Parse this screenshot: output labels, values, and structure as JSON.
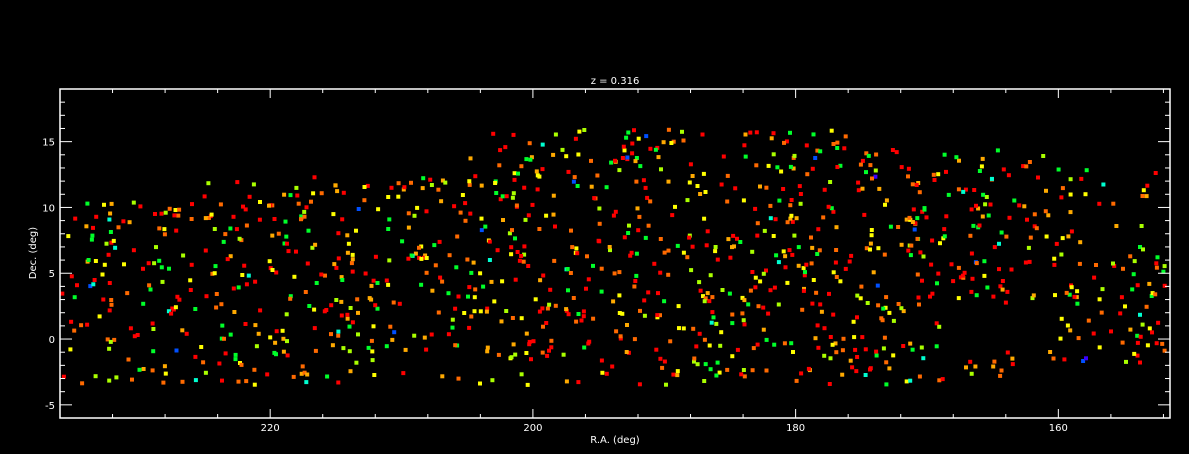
{
  "chart_data": {
    "type": "scatter",
    "title": "z = 0.316",
    "xlabel": "R.A. (deg)",
    "ylabel": "Dec. (deg)",
    "xlim": [
      236,
      151.5
    ],
    "ylim": [
      -6,
      19
    ],
    "x_ticks": [
      {
        "value": 220,
        "label": "220"
      },
      {
        "value": 200,
        "label": "200"
      },
      {
        "value": 180,
        "label": "180"
      },
      {
        "value": 160,
        "label": "160"
      }
    ],
    "y_ticks": [
      {
        "value": -5,
        "label": "-5"
      },
      {
        "value": 0,
        "label": "0"
      },
      {
        "value": 5,
        "label": "5"
      },
      {
        "value": 10,
        "label": "10"
      },
      {
        "value": 15,
        "label": "15"
      }
    ],
    "grid": false,
    "background": "#000000",
    "axis_color": "#ffffff",
    "point_colors": [
      "#ff0000",
      "#ff6a00",
      "#ffaa00",
      "#ffff00",
      "#aaff00",
      "#00ff2a",
      "#00ffd0",
      "#0050ff",
      "#3a00ff"
    ],
    "point_color_weights": [
      30,
      20,
      14,
      14,
      10,
      11,
      2,
      1,
      0.5
    ],
    "point_count": 1200,
    "point_seed": 31612
  }
}
